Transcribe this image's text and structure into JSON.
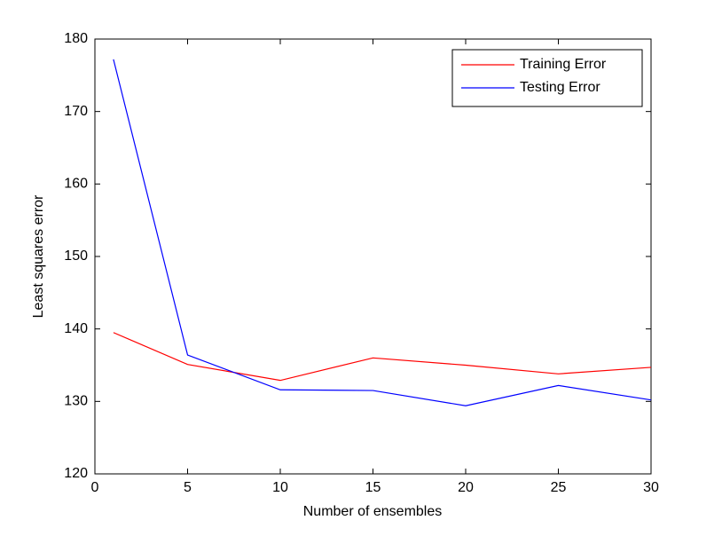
{
  "chart_data": {
    "type": "line",
    "x_label": "Number of ensembles",
    "y_label": "Least squares error",
    "x": [
      1,
      5,
      10,
      15,
      20,
      25,
      30
    ],
    "series": [
      {
        "name": "Training Error",
        "color": "#ff0000",
        "values": [
          139.5,
          135.1,
          132.9,
          136.0,
          135.0,
          133.8,
          134.7
        ]
      },
      {
        "name": "Testing Error",
        "color": "#0000ff",
        "values": [
          177.2,
          136.4,
          131.6,
          131.5,
          129.4,
          132.2,
          130.2
        ]
      }
    ],
    "xlim": [
      0,
      30
    ],
    "xticks": [
      0,
      5,
      10,
      15,
      20,
      25,
      30
    ],
    "ylim": [
      120,
      180
    ],
    "yticks": [
      120,
      130,
      140,
      150,
      160,
      170,
      180
    ],
    "grid": false,
    "legend_position": "upper-right"
  }
}
